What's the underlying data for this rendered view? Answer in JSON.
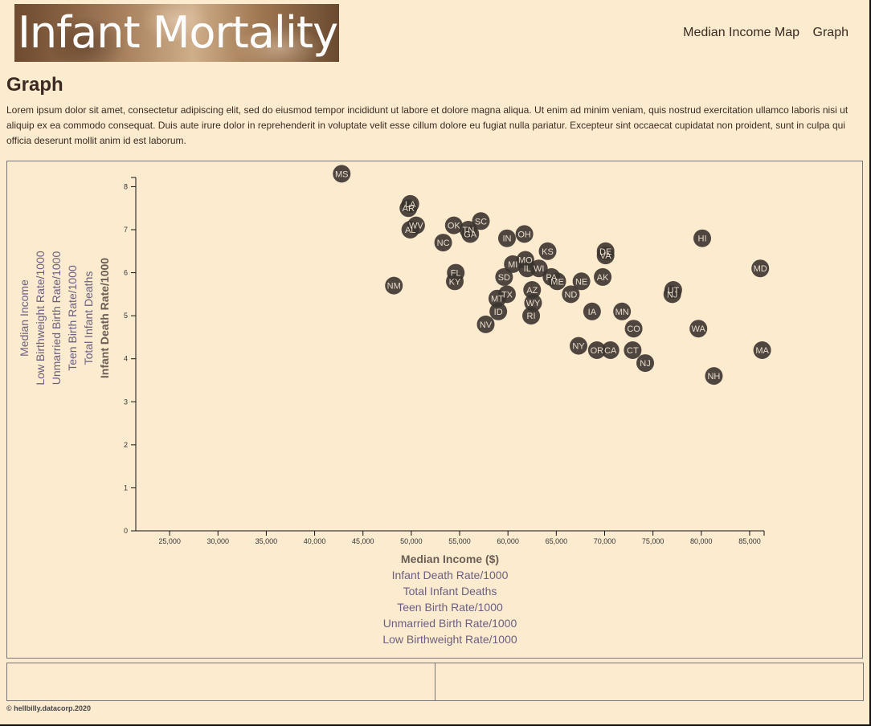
{
  "header": {
    "banner_title": "Infant Mortality",
    "nav": [
      {
        "label": "Median Income Map"
      },
      {
        "label": "Graph"
      }
    ]
  },
  "page": {
    "title": "Graph",
    "intro": "Lorem ipsum dolor sit amet, consectetur adipiscing elit, sed do eiusmod tempor incididunt ut labore et dolore magna aliqua. Ut enim ad minim veniam, quis nostrud exercitation ullamco laboris nisi ut aliquip ex ea commodo consequat. Duis aute irure dolor in reprehenderit in voluptate velit esse cillum dolore eu fugiat nulla pariatur. Excepteur sint occaecat cupidatat non proident, sunt in culpa qui officia deserunt mollit anim id est laborum."
  },
  "footer": {
    "copyright": "© hellbilly.datacorp.2020"
  },
  "colors": {
    "marker": "#3b342f",
    "marker_label": "#e8dccc",
    "axis": "#111111",
    "background": "#fdebd0"
  },
  "chart_data": {
    "type": "scatter",
    "x_axis": {
      "active_label": "Median Income ($)",
      "options": [
        "Infant Death Rate/1000",
        "Total Infant Deaths",
        "Teen Birth Rate/1000",
        "Unmarried Birth Rate/1000",
        "Low Birthweight Rate/1000"
      ],
      "min": 21500,
      "max": 86500,
      "ticks": [
        25000,
        30000,
        35000,
        40000,
        45000,
        50000,
        55000,
        60000,
        65000,
        70000,
        75000,
        80000,
        85000
      ],
      "tick_labels": [
        "25,000",
        "30,000",
        "35,000",
        "40,000",
        "45,000",
        "50,000",
        "55,000",
        "60,000",
        "65,000",
        "70,000",
        "75,000",
        "80,000",
        "85,000"
      ]
    },
    "y_axis": {
      "active_label": "Infant Death Rate/1000",
      "options": [
        "Median Income",
        "Low Birthweight Rate/1000",
        "Unmarried Birth Rate/1000",
        "Teen Birth Rate/1000",
        "Total Infant Deaths"
      ],
      "min": 0,
      "max": 8.4,
      "ticks": [
        0,
        1,
        2,
        3,
        4,
        5,
        6,
        7,
        8
      ],
      "tick_labels": [
        "0",
        "1",
        "2",
        "3",
        "4",
        "5",
        "6",
        "7",
        "8"
      ]
    },
    "points": [
      {
        "state": "MS",
        "x": 42800,
        "y": 8.3
      },
      {
        "state": "LA",
        "x": 49900,
        "y": 7.6
      },
      {
        "state": "AR",
        "x": 49700,
        "y": 7.5
      },
      {
        "state": "WV",
        "x": 50500,
        "y": 7.1
      },
      {
        "state": "AL",
        "x": 49900,
        "y": 7.0
      },
      {
        "state": "NC",
        "x": 53300,
        "y": 6.7
      },
      {
        "state": "OK",
        "x": 54400,
        "y": 7.1
      },
      {
        "state": "SC",
        "x": 57200,
        "y": 7.2
      },
      {
        "state": "TN",
        "x": 55900,
        "y": 7.0
      },
      {
        "state": "GA",
        "x": 56100,
        "y": 6.9
      },
      {
        "state": "IN",
        "x": 59900,
        "y": 6.8
      },
      {
        "state": "OH",
        "x": 61700,
        "y": 6.9
      },
      {
        "state": "KS",
        "x": 64100,
        "y": 6.5
      },
      {
        "state": "HI",
        "x": 80100,
        "y": 6.8
      },
      {
        "state": "DE",
        "x": 70100,
        "y": 6.5
      },
      {
        "state": "VA",
        "x": 70100,
        "y": 6.4
      },
      {
        "state": "MD",
        "x": 86100,
        "y": 6.1
      },
      {
        "state": "FL",
        "x": 54600,
        "y": 6.0
      },
      {
        "state": "KY",
        "x": 54500,
        "y": 5.8
      },
      {
        "state": "MI",
        "x": 60500,
        "y": 6.2
      },
      {
        "state": "MO",
        "x": 61800,
        "y": 6.3
      },
      {
        "state": "IL",
        "x": 62000,
        "y": 6.1
      },
      {
        "state": "WI",
        "x": 63200,
        "y": 6.1
      },
      {
        "state": "SD",
        "x": 59600,
        "y": 5.9
      },
      {
        "state": "PA",
        "x": 64500,
        "y": 5.9
      },
      {
        "state": "ME",
        "x": 65100,
        "y": 5.8
      },
      {
        "state": "NE",
        "x": 67600,
        "y": 5.8
      },
      {
        "state": "AK",
        "x": 69800,
        "y": 5.9
      },
      {
        "state": "ND",
        "x": 66500,
        "y": 5.5
      },
      {
        "state": "NM",
        "x": 48200,
        "y": 5.7
      },
      {
        "state": "AZ",
        "x": 62500,
        "y": 5.6
      },
      {
        "state": "TX",
        "x": 59900,
        "y": 5.5
      },
      {
        "state": "MT",
        "x": 58900,
        "y": 5.4
      },
      {
        "state": "WY",
        "x": 62600,
        "y": 5.3
      },
      {
        "state": "ID",
        "x": 59000,
        "y": 5.1
      },
      {
        "state": "IA",
        "x": 68700,
        "y": 5.1
      },
      {
        "state": "MN",
        "x": 71800,
        "y": 5.1
      },
      {
        "state": "RI",
        "x": 62400,
        "y": 5.0
      },
      {
        "state": "NV",
        "x": 57700,
        "y": 4.8
      },
      {
        "state": "UT",
        "x": 77100,
        "y": 5.6
      },
      {
        "state": "NJ",
        "x": 77000,
        "y": 5.5
      },
      {
        "state": "CO",
        "x": 73000,
        "y": 4.7
      },
      {
        "state": "WA",
        "x": 79700,
        "y": 4.7
      },
      {
        "state": "NY",
        "x": 67300,
        "y": 4.3
      },
      {
        "state": "OR",
        "x": 69200,
        "y": 4.2
      },
      {
        "state": "CA",
        "x": 70600,
        "y": 4.2
      },
      {
        "state": "CT",
        "x": 72900,
        "y": 4.2
      },
      {
        "state": "NJ",
        "x": 74200,
        "y": 3.9
      },
      {
        "state": "MA",
        "x": 86300,
        "y": 4.2
      },
      {
        "state": "NH",
        "x": 81300,
        "y": 3.6
      }
    ]
  }
}
